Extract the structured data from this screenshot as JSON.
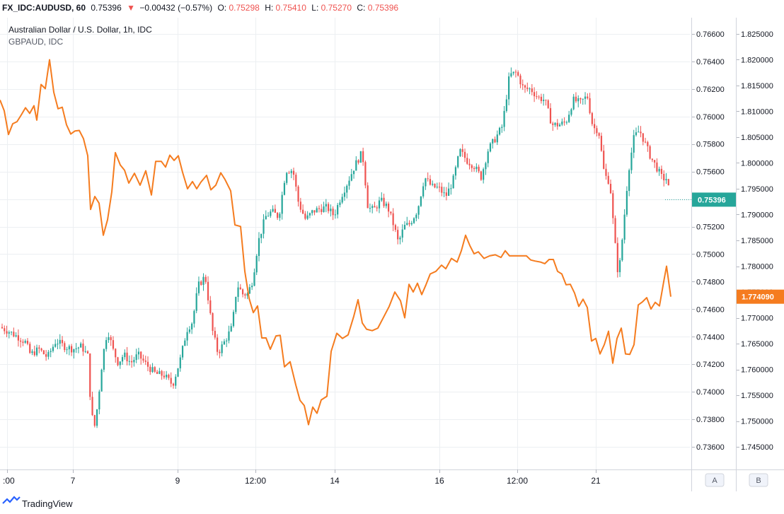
{
  "header": {
    "symbol": "FX_IDC:AUDUSD, 60",
    "last": "0.75396",
    "change": "−0.00432 (−0.57%)",
    "o_label": "O:",
    "o_value": "0.75298",
    "h_label": "H:",
    "h_value": "0.75410",
    "l_label": "L:",
    "l_value": "0.75270",
    "c_label": "C:",
    "c_value": "0.75396"
  },
  "legend": {
    "main": "Australian Dollar / U.S. Dollar, 1h, IDC",
    "compare": "GBPAUD, IDC"
  },
  "scale_buttons": {
    "a": "A",
    "b": "B"
  },
  "footer": {
    "brand": "TradingView"
  },
  "colors": {
    "up": "#26a69a",
    "down": "#ef5350",
    "compare_line": "#f57c1f",
    "last_badge": "#26a69a",
    "compare_badge": "#f57c1f",
    "grid": "#eceff2",
    "axis_text": "#131722",
    "header_down": "#ef5350"
  },
  "chart_data": {
    "type": "candlestick",
    "x_ticks": [
      ":00",
      "7",
      "9",
      "12:00",
      "14",
      "16",
      "12:00",
      "21"
    ],
    "price_axis_a": {
      "ylim": [
        0.735,
        0.7672
      ],
      "ticks": [
        "0.76600",
        "0.76400",
        "0.76200",
        "0.76000",
        "0.75800",
        "0.75600",
        "0.75400",
        "0.75200",
        "0.75000",
        "0.74800",
        "0.74600",
        "0.74400",
        "0.74200",
        "0.74000",
        "0.73800",
        "0.73600"
      ]
    },
    "price_axis_b": {
      "ylim": [
        1.7415,
        1.8266
      ],
      "ticks": [
        "1.825000",
        "1.820000",
        "1.815000",
        "1.810000",
        "1.805000",
        "1.800000",
        "1.795000",
        "1.790000",
        "1.785000",
        "1.780000",
        "1.775000",
        "1.770000",
        "1.765000",
        "1.760000",
        "1.755000",
        "1.750000",
        "1.745000"
      ]
    },
    "series": [
      {
        "name": "Australian Dollar / U.S. Dollar, 1h, IDC",
        "kind": "candles",
        "close_path": [
          [
            0,
            0.7447
          ],
          [
            12,
            0.7444
          ],
          [
            25,
            0.744
          ],
          [
            36,
            0.7436
          ],
          [
            43,
            0.7427
          ],
          [
            55,
            0.7431
          ],
          [
            67,
            0.7425
          ],
          [
            79,
            0.7437
          ],
          [
            91,
            0.7433
          ],
          [
            103,
            0.7431
          ],
          [
            115,
            0.7433
          ],
          [
            124,
            0.7426
          ],
          [
            129,
            0.7384
          ],
          [
            134,
            0.7375
          ],
          [
            139,
            0.7395
          ],
          [
            145,
            0.7425
          ],
          [
            152,
            0.7445
          ],
          [
            160,
            0.743
          ],
          [
            167,
            0.7421
          ],
          [
            175,
            0.7427
          ],
          [
            185,
            0.7421
          ],
          [
            195,
            0.7427
          ],
          [
            208,
            0.7419
          ],
          [
            220,
            0.7413
          ],
          [
            232,
            0.7412
          ],
          [
            244,
            0.7405
          ],
          [
            255,
            0.7424
          ],
          [
            264,
            0.7445
          ],
          [
            272,
            0.7451
          ],
          [
            280,
            0.7477
          ],
          [
            290,
            0.7484
          ],
          [
            300,
            0.7445
          ],
          [
            308,
            0.7428
          ],
          [
            318,
            0.7437
          ],
          [
            328,
            0.7447
          ],
          [
            335,
            0.7478
          ],
          [
            343,
            0.7471
          ],
          [
            350,
            0.7471
          ],
          [
            357,
            0.7481
          ],
          [
            365,
            0.7509
          ],
          [
            375,
            0.7527
          ],
          [
            384,
            0.7531
          ],
          [
            394,
            0.7527
          ],
          [
            404,
            0.7561
          ],
          [
            414,
            0.7561
          ],
          [
            422,
            0.7537
          ],
          [
            432,
            0.7525
          ],
          [
            442,
            0.7531
          ],
          [
            452,
            0.7533
          ],
          [
            462,
            0.7534
          ],
          [
            472,
            0.7528
          ],
          [
            482,
            0.7542
          ],
          [
            492,
            0.7553
          ],
          [
            502,
            0.7565
          ],
          [
            512,
            0.7574
          ],
          [
            520,
            0.7534
          ],
          [
            528,
            0.7532
          ],
          [
            538,
            0.7539
          ],
          [
            548,
            0.7534
          ],
          [
            557,
            0.752
          ],
          [
            563,
            0.7508
          ],
          [
            571,
            0.752
          ],
          [
            579,
            0.7522
          ],
          [
            590,
            0.7532
          ],
          [
            600,
            0.7556
          ],
          [
            610,
            0.7549
          ],
          [
            620,
            0.7548
          ],
          [
            630,
            0.7542
          ],
          [
            640,
            0.7553
          ],
          [
            650,
            0.7575
          ],
          [
            660,
            0.7568
          ],
          [
            670,
            0.7564
          ],
          [
            680,
            0.7556
          ],
          [
            690,
            0.7576
          ],
          [
            700,
            0.7584
          ],
          [
            710,
            0.7593
          ],
          [
            720,
            0.763
          ],
          [
            730,
            0.7632
          ],
          [
            740,
            0.762
          ],
          [
            750,
            0.762
          ],
          [
            760,
            0.7614
          ],
          [
            770,
            0.7612
          ],
          [
            780,
            0.7594
          ],
          [
            790,
            0.7594
          ],
          [
            800,
            0.7596
          ],
          [
            810,
            0.7612
          ],
          [
            820,
            0.761
          ],
          [
            830,
            0.7615
          ],
          [
            838,
            0.7592
          ],
          [
            846,
            0.759
          ],
          [
            854,
            0.7558
          ],
          [
            862,
            0.7552
          ],
          [
            868,
            0.7514
          ],
          [
            874,
            0.7483
          ],
          [
            880,
            0.7514
          ],
          [
            888,
            0.756
          ],
          [
            896,
            0.7585
          ],
          [
            904,
            0.759
          ],
          [
            912,
            0.758
          ],
          [
            920,
            0.757
          ],
          [
            928,
            0.7563
          ],
          [
            936,
            0.7555
          ],
          [
            942,
            0.7555
          ],
          [
            948,
            0.754
          ]
        ],
        "last": 0.75396
      },
      {
        "name": "GBPAUD, IDC",
        "kind": "line",
        "points": [
          [
            0,
            1.8122
          ],
          [
            6,
            1.8101
          ],
          [
            12,
            1.8055
          ],
          [
            18,
            1.8076
          ],
          [
            24,
            1.808
          ],
          [
            30,
            1.8093
          ],
          [
            36,
            1.8107
          ],
          [
            42,
            1.8096
          ],
          [
            48,
            1.8111
          ],
          [
            52,
            1.8083
          ],
          [
            58,
            1.8152
          ],
          [
            64,
            1.8144
          ],
          [
            70,
            1.82
          ],
          [
            76,
            1.8137
          ],
          [
            82,
            1.8105
          ],
          [
            88,
            1.8108
          ],
          [
            94,
            1.8074
          ],
          [
            100,
            1.8056
          ],
          [
            106,
            1.8062
          ],
          [
            112,
            1.8063
          ],
          [
            118,
            1.8047
          ],
          [
            124,
            1.8014
          ],
          [
            128,
            1.791
          ],
          [
            134,
            1.7935
          ],
          [
            140,
            1.7922
          ],
          [
            146,
            1.786
          ],
          [
            152,
            1.789
          ],
          [
            158,
            1.7944
          ],
          [
            163,
            1.802
          ],
          [
            170,
            1.7996
          ],
          [
            176,
            1.7986
          ],
          [
            182,
            1.7961
          ],
          [
            190,
            1.798
          ],
          [
            198,
            1.7957
          ],
          [
            206,
            1.7985
          ],
          [
            214,
            1.7938
          ],
          [
            220,
            1.8003
          ],
          [
            228,
            1.8003
          ],
          [
            234,
            1.7992
          ],
          [
            240,
            1.8015
          ],
          [
            246,
            1.8005
          ],
          [
            252,
            1.8014
          ],
          [
            258,
            1.7982
          ],
          [
            265,
            1.795
          ],
          [
            272,
            1.7964
          ],
          [
            278,
            1.795
          ],
          [
            284,
            1.7963
          ],
          [
            292,
            1.7976
          ],
          [
            298,
            1.7948
          ],
          [
            305,
            1.7957
          ],
          [
            312,
            1.7981
          ],
          [
            318,
            1.7968
          ],
          [
            326,
            1.7946
          ],
          [
            332,
            1.788
          ],
          [
            340,
            1.7877
          ],
          [
            346,
            1.779
          ],
          [
            352,
            1.7738
          ],
          [
            358,
            1.771
          ],
          [
            364,
            1.7723
          ],
          [
            370,
            1.7661
          ],
          [
            376,
            1.7661
          ],
          [
            382,
            1.7639
          ],
          [
            390,
            1.7665
          ],
          [
            396,
            1.7666
          ],
          [
            402,
            1.7605
          ],
          [
            410,
            1.7615
          ],
          [
            418,
            1.757
          ],
          [
            424,
            1.754
          ],
          [
            430,
            1.753
          ],
          [
            436,
            1.7493
          ],
          [
            442,
            1.7527
          ],
          [
            448,
            1.7515
          ],
          [
            454,
            1.7541
          ],
          [
            462,
            1.7548
          ],
          [
            468,
            1.7635
          ],
          [
            476,
            1.767
          ],
          [
            484,
            1.766
          ],
          [
            492,
            1.7667
          ],
          [
            500,
            1.7703
          ],
          [
            506,
            1.7735
          ],
          [
            512,
            1.769
          ],
          [
            518,
            1.7678
          ],
          [
            526,
            1.7675
          ],
          [
            534,
            1.768
          ],
          [
            542,
            1.7701
          ],
          [
            550,
            1.7722
          ],
          [
            558,
            1.775
          ],
          [
            566,
            1.7733
          ],
          [
            572,
            1.77
          ],
          [
            578,
            1.7765
          ],
          [
            584,
            1.775
          ],
          [
            590,
            1.7767
          ],
          [
            596,
            1.7745
          ],
          [
            602,
            1.7764
          ],
          [
            608,
            1.7785
          ],
          [
            616,
            1.779
          ],
          [
            624,
            1.7802
          ],
          [
            630,
            1.7795
          ],
          [
            638,
            1.7815
          ],
          [
            646,
            1.7808
          ],
          [
            652,
            1.783
          ],
          [
            658,
            1.786
          ],
          [
            664,
            1.784
          ],
          [
            670,
            1.7824
          ],
          [
            676,
            1.7828
          ],
          [
            684,
            1.7815
          ],
          [
            692,
            1.782
          ],
          [
            700,
            1.7822
          ],
          [
            708,
            1.7817
          ],
          [
            714,
            1.783
          ],
          [
            720,
            1.782
          ],
          [
            728,
            1.782
          ],
          [
            736,
            1.782
          ],
          [
            744,
            1.782
          ],
          [
            750,
            1.7812
          ],
          [
            756,
            1.781
          ],
          [
            764,
            1.7808
          ],
          [
            770,
            1.7805
          ],
          [
            776,
            1.7813
          ],
          [
            782,
            1.7813
          ],
          [
            788,
            1.779
          ],
          [
            794,
            1.7785
          ],
          [
            800,
            1.7764
          ],
          [
            806,
            1.7765
          ],
          [
            812,
            1.7748
          ],
          [
            818,
            1.7722
          ],
          [
            824,
            1.7736
          ],
          [
            830,
            1.772
          ],
          [
            836,
            1.7655
          ],
          [
            842,
            1.766
          ],
          [
            848,
            1.763
          ],
          [
            854,
            1.7648
          ],
          [
            860,
            1.7674
          ],
          [
            866,
            1.7612
          ],
          [
            872,
            1.766
          ],
          [
            878,
            1.768
          ],
          [
            884,
            1.763
          ],
          [
            890,
            1.7629
          ],
          [
            896,
            1.7648
          ],
          [
            902,
            1.7725
          ],
          [
            908,
            1.7731
          ],
          [
            914,
            1.7739
          ],
          [
            920,
            1.7717
          ],
          [
            926,
            1.773
          ],
          [
            932,
            1.7723
          ],
          [
            938,
            1.777
          ],
          [
            942,
            1.78
          ],
          [
            948,
            1.7741
          ]
        ],
        "last": 1.77409
      }
    ],
    "last_labels": {
      "main": "0.75396",
      "compare": "1.774090"
    },
    "grid": true,
    "legend_position": "top-left"
  }
}
